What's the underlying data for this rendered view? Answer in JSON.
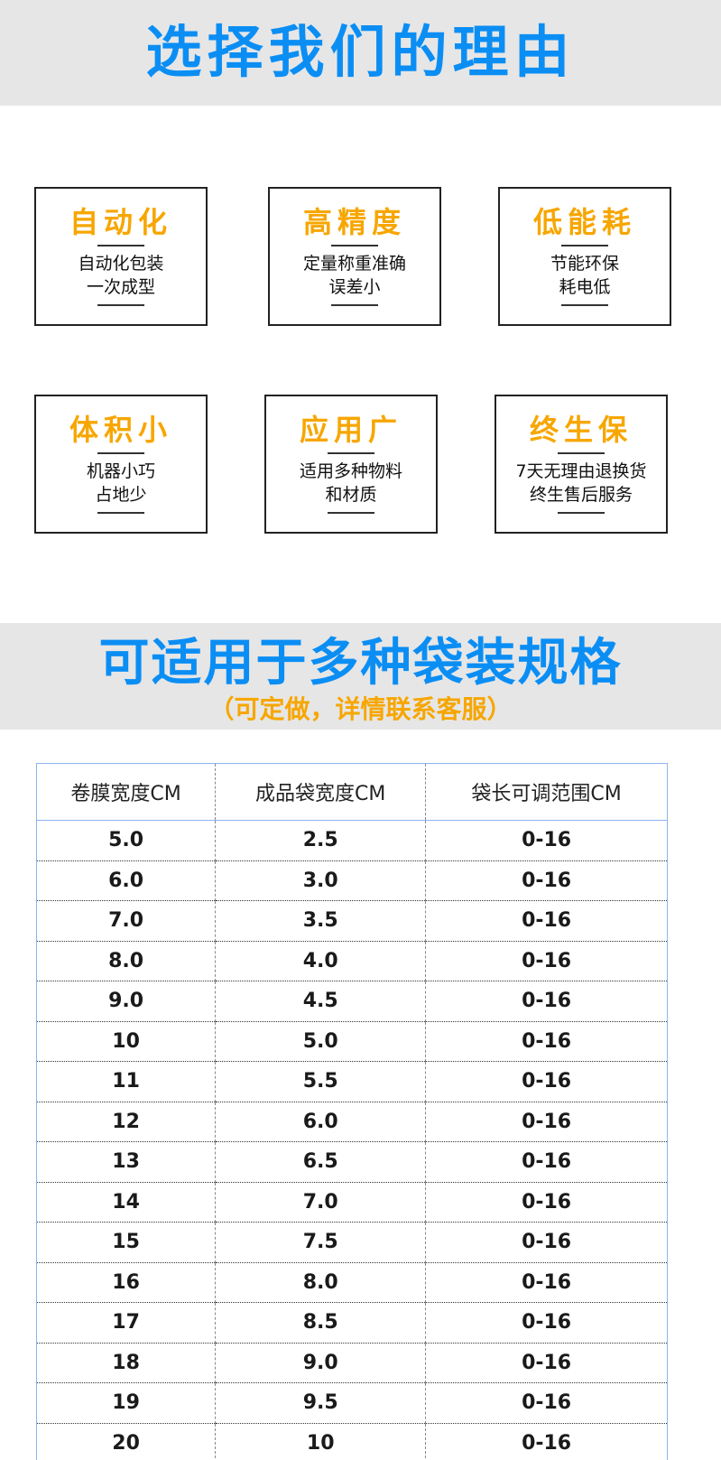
{
  "section1": {
    "title": "选择我们的理由"
  },
  "features": [
    {
      "title": "自动化",
      "lines": [
        "自动化包装",
        "一次成型"
      ]
    },
    {
      "title": "高精度",
      "lines": [
        "定量称重准确",
        "误差小"
      ]
    },
    {
      "title": "低能耗",
      "lines": [
        "节能环保",
        "耗电低"
      ]
    },
    {
      "title": "体积小",
      "lines": [
        "机器小巧",
        "占地少"
      ]
    },
    {
      "title": "应用广",
      "lines": [
        "适用多种物料",
        "和材质"
      ]
    },
    {
      "title": "终生保",
      "lines": [
        "7天无理由退换货",
        "终生售后服务"
      ]
    }
  ],
  "section2": {
    "title": "可适用于多种袋装规格",
    "subtitle": "（可定做，详情联系客服）"
  },
  "colors": {
    "title_blue": "#0b8ef4",
    "accent_orange": "#f7a600",
    "band_gray": "#e6e6e6",
    "table_border": "#8db4ee"
  },
  "table": {
    "headers": [
      "卷膜宽度CM",
      "成品袋宽度CM",
      "袋长可调范围CM"
    ],
    "rows": [
      [
        "5.0",
        "2.5",
        "0-16"
      ],
      [
        "6.0",
        "3.0",
        "0-16"
      ],
      [
        "7.0",
        "3.5",
        "0-16"
      ],
      [
        "8.0",
        "4.0",
        "0-16"
      ],
      [
        "9.0",
        "4.5",
        "0-16"
      ],
      [
        "10",
        "5.0",
        "0-16"
      ],
      [
        "11",
        "5.5",
        "0-16"
      ],
      [
        "12",
        "6.0",
        "0-16"
      ],
      [
        "13",
        "6.5",
        "0-16"
      ],
      [
        "14",
        "7.0",
        "0-16"
      ],
      [
        "15",
        "7.5",
        "0-16"
      ],
      [
        "16",
        "8.0",
        "0-16"
      ],
      [
        "17",
        "8.5",
        "0-16"
      ],
      [
        "18",
        "9.0",
        "0-16"
      ],
      [
        "19",
        "9.5",
        "0-16"
      ],
      [
        "20",
        "10",
        "0-16"
      ]
    ]
  }
}
